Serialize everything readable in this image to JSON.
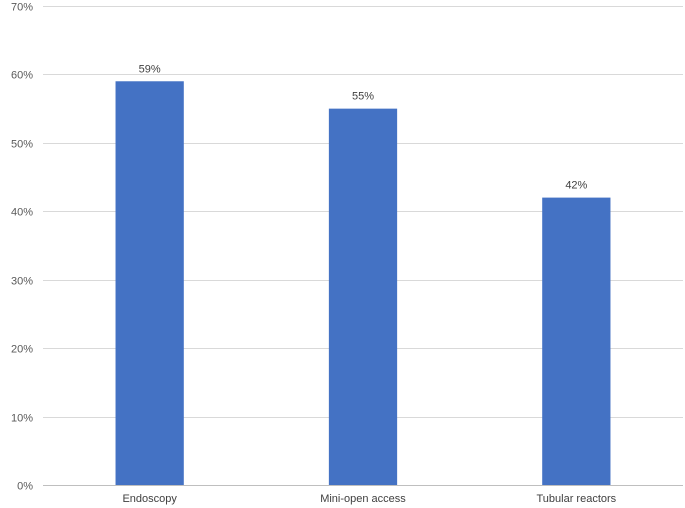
{
  "chart_data": {
    "type": "bar",
    "title": "",
    "xlabel": "",
    "ylabel": "",
    "categories": [
      "Endoscopy",
      "Mini-open access",
      "Tubular reactors"
    ],
    "values": [
      59,
      55,
      42
    ],
    "data_labels": [
      "59%",
      "55%",
      "42%"
    ],
    "ylim": [
      0,
      70
    ],
    "yticks": [
      0,
      10,
      20,
      30,
      40,
      50,
      60,
      70
    ],
    "ytick_labels": [
      "0%",
      "10%",
      "20%",
      "30%",
      "40%",
      "50%",
      "60%",
      "70%"
    ],
    "grid": true,
    "legend": "none",
    "bar_color": "#4472c4"
  }
}
